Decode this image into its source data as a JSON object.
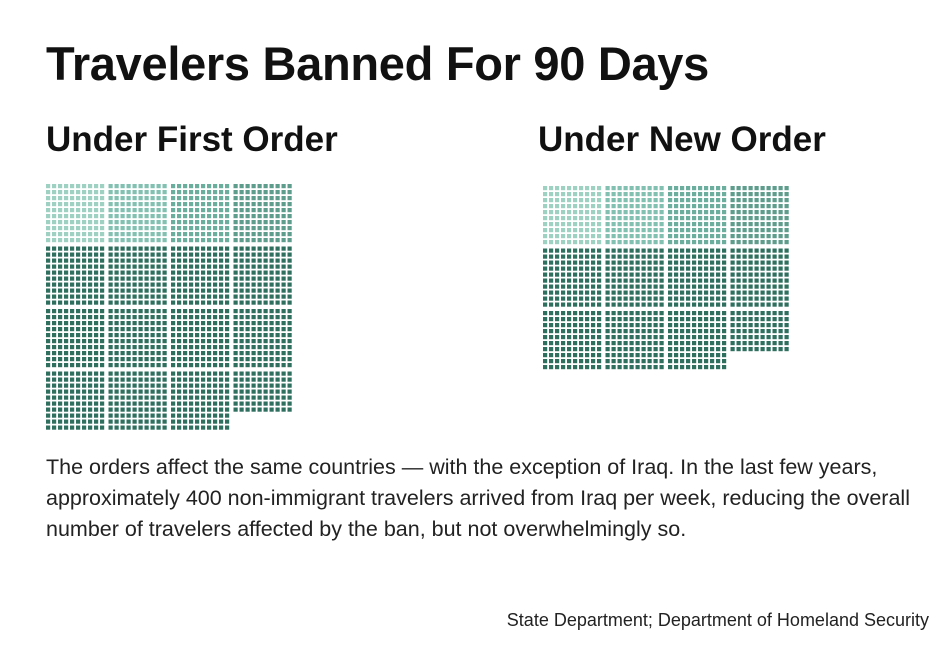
{
  "header": {
    "title": "Travelers Banned For 90 Days"
  },
  "description": "The orders affect the same countries — with the exception of Iraq. In the last few years, approximately 400 non-immigrant travelers arrived from Iraq per week, reducing the overall number of travelers affected by the ban, but not overwhelmingly so.",
  "source": "State Department; Department of Homeland Security",
  "chart_data": [
    {
      "type": "waffle",
      "title": "Under First Order",
      "block_rows": 4,
      "block_columns": 4,
      "dots_per_block": 100,
      "full_blocks": 15,
      "partial_block_dots": 70,
      "highlighted_blocks": 4,
      "colors": {
        "light": [
          "#9fd1c3",
          "#82c0b1",
          "#6cae9e",
          "#5e9c8c"
        ],
        "dark": "#2f6f5d"
      }
    },
    {
      "type": "waffle",
      "title": "Under New Order",
      "block_rows": 3,
      "block_columns": 4,
      "dots_per_block": 100,
      "full_blocks": 11,
      "partial_block_dots": 70,
      "highlighted_blocks": 4,
      "colors": {
        "light": [
          "#9fd1c3",
          "#82c0b1",
          "#6cae9e",
          "#5e9c8c"
        ],
        "dark": "#2f6f5d"
      }
    }
  ]
}
